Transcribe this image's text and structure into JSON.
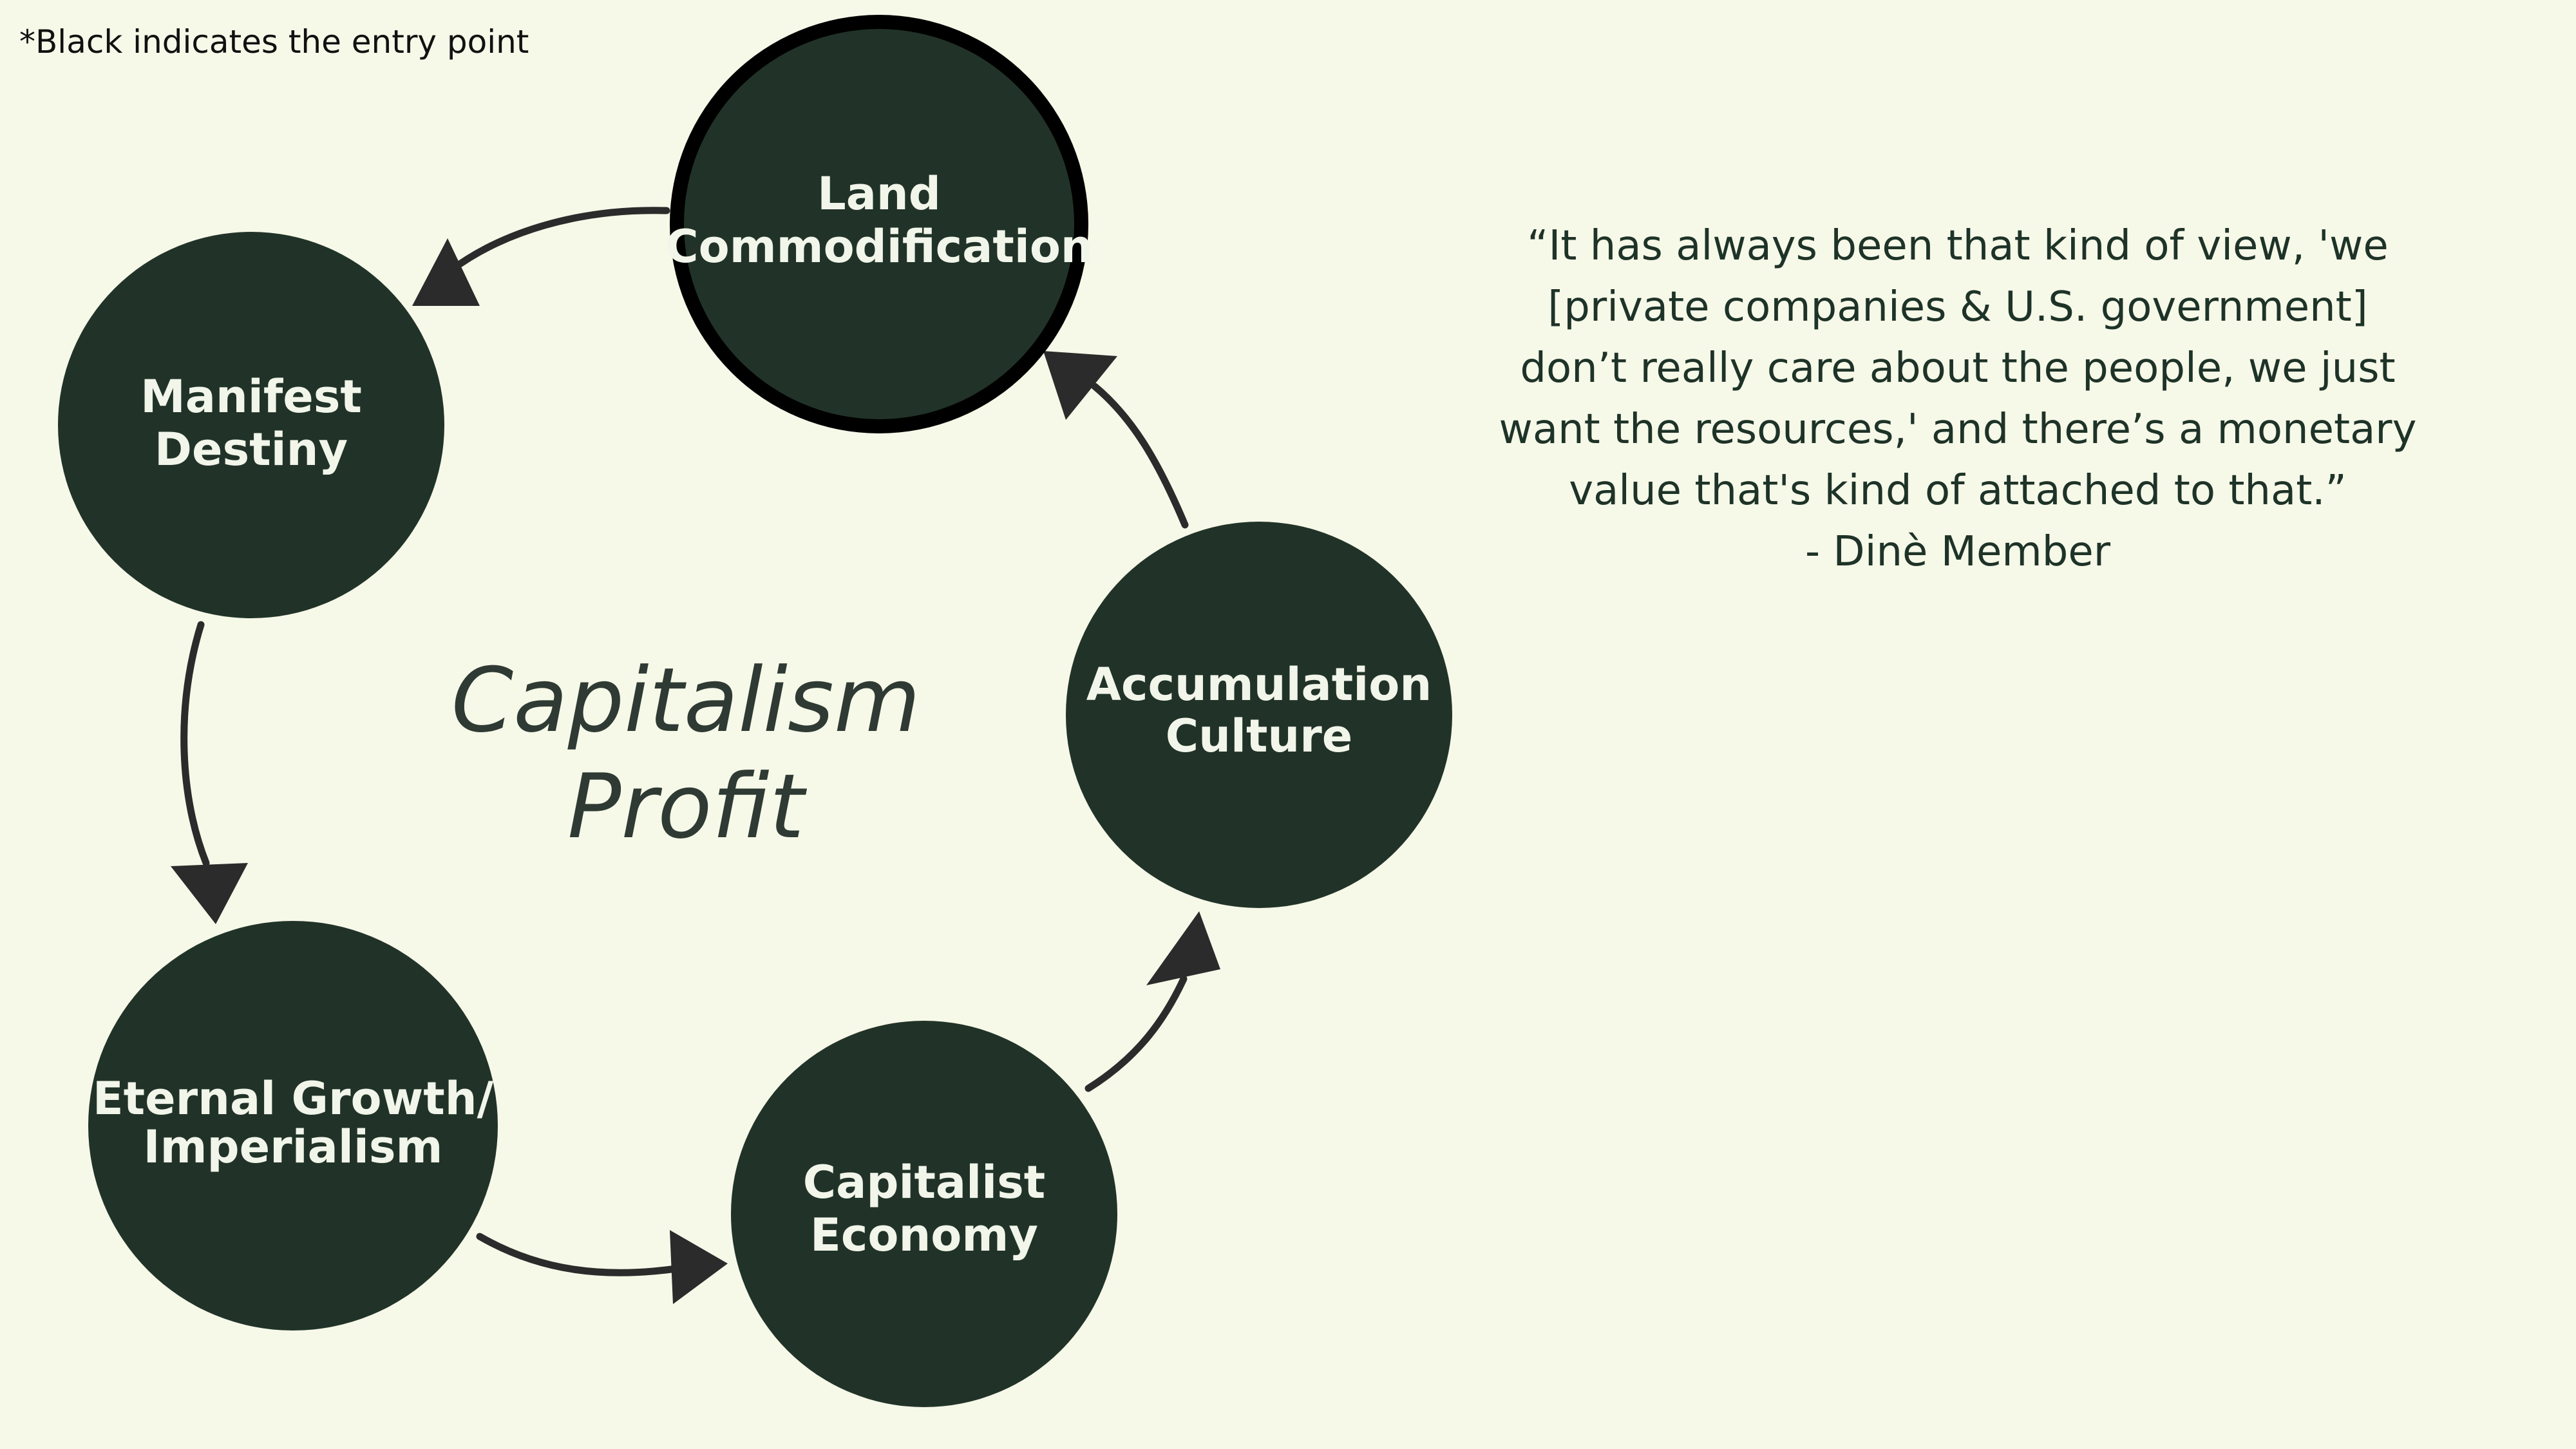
{
  "note": "*Black indicates the entry point",
  "center_label": {
    "line1": "Capitalism",
    "line2": "Profit"
  },
  "nodes": [
    {
      "id": "land-commodification",
      "lines": [
        "Land",
        "Commodification"
      ],
      "entry_point": true
    },
    {
      "id": "manifest-destiny",
      "lines": [
        "Manifest",
        "Destiny"
      ]
    },
    {
      "id": "eternal-growth-imperialism",
      "lines": [
        "Eternal Growth/",
        "Imperialism"
      ]
    },
    {
      "id": "capitalist-economy",
      "lines": [
        "Capitalist",
        "Economy"
      ]
    },
    {
      "id": "accumulation-culture",
      "lines": [
        "Accumulation",
        "Culture"
      ]
    }
  ],
  "quote": {
    "lines": [
      "“It has always been that kind of view, 'we",
      "[private companies & U.S. government]",
      "don’t really care about the people, we just",
      "want the resources,' and there’s a monetary",
      "value that's kind of attached to that.”",
      "- Dinè Member"
    ]
  },
  "colors": {
    "background": "#f6f8e8",
    "node_fill": "#213328",
    "entry_border": "#000000",
    "arrow": "#2b2b2b",
    "node_text": "#f2f5ea",
    "quote_text": "#1e3328"
  }
}
